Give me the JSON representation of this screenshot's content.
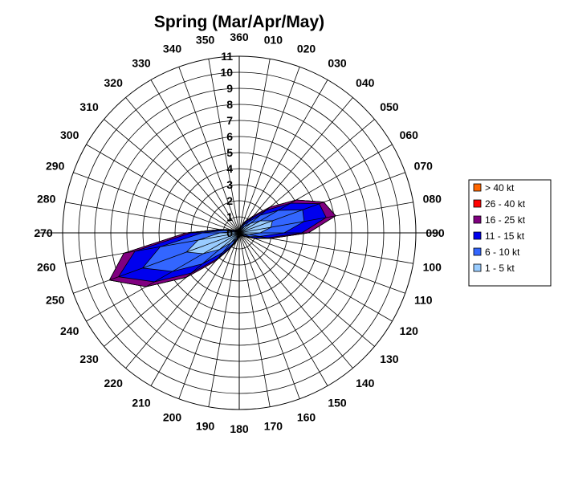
{
  "chart_data": {
    "type": "radar",
    "title": "Spring (Mar/Apr/May)",
    "directions": [
      "360",
      "010",
      "020",
      "030",
      "040",
      "050",
      "060",
      "070",
      "080",
      "090",
      "100",
      "110",
      "120",
      "130",
      "140",
      "150",
      "160",
      "170",
      "180",
      "190",
      "200",
      "210",
      "220",
      "230",
      "240",
      "250",
      "260",
      "270",
      "280",
      "290",
      "300",
      "310",
      "320",
      "330",
      "340",
      "350"
    ],
    "radial_ticks": [
      "0",
      "1",
      "2",
      "3",
      "4",
      "5",
      "6",
      "7",
      "8",
      "9",
      "10",
      "11"
    ],
    "rlim": [
      0,
      11
    ],
    "grid": true,
    "legend": {
      "position": "right",
      "entries": [
        {
          "label": "> 40 kt",
          "color": "#ff6600"
        },
        {
          "label": "26 - 40 kt",
          "color": "#ff0000"
        },
        {
          "label": "16 - 25 kt",
          "color": "#800080"
        },
        {
          "label": "11 - 15 kt",
          "color": "#0000ee"
        },
        {
          "label": "6 - 10 kt",
          "color": "#3366ff"
        },
        {
          "label": "1 - 5 kt",
          "color": "#99ccff"
        }
      ]
    },
    "series": [
      {
        "name": "> 40 kt",
        "color": "#ff6600",
        "values": [
          0.2,
          0.3,
          0.6,
          0.9,
          1.4,
          2.5,
          4.1,
          5.6,
          6.1,
          4.3,
          2.0,
          1.0,
          0.5,
          0.3,
          0.2,
          0.2,
          0.2,
          0.2,
          0.2,
          0.3,
          0.6,
          1.1,
          2.3,
          4.3,
          6.7,
          8.6,
          7.3,
          3.3,
          1.2,
          0.6,
          0.3,
          0.3,
          0.2,
          0.2,
          0.2,
          0.2
        ]
      },
      {
        "name": "26 - 40 kt",
        "color": "#ff0000",
        "values": [
          0.2,
          0.3,
          0.6,
          0.9,
          1.4,
          2.5,
          4.1,
          5.6,
          6.1,
          4.3,
          2.0,
          1.0,
          0.5,
          0.3,
          0.2,
          0.2,
          0.2,
          0.2,
          0.2,
          0.3,
          0.6,
          1.1,
          2.3,
          4.3,
          6.7,
          8.6,
          7.3,
          3.3,
          1.2,
          0.6,
          0.3,
          0.3,
          0.2,
          0.2,
          0.2,
          0.2
        ]
      },
      {
        "name": "16 - 25 kt",
        "color": "#800080",
        "values": [
          0.2,
          0.3,
          0.6,
          0.9,
          1.4,
          2.5,
          4.1,
          5.6,
          6.1,
          4.3,
          2.0,
          1.0,
          0.5,
          0.3,
          0.2,
          0.2,
          0.2,
          0.2,
          0.2,
          0.3,
          0.6,
          1.1,
          2.3,
          4.3,
          6.7,
          8.6,
          7.3,
          3.3,
          1.2,
          0.6,
          0.3,
          0.3,
          0.2,
          0.2,
          0.2,
          0.2
        ]
      },
      {
        "name": "11 - 15 kt",
        "color": "#0000ee",
        "values": [
          0.2,
          0.3,
          0.5,
          0.8,
          1.2,
          2.2,
          3.7,
          5.3,
          5.5,
          3.9,
          1.8,
          0.9,
          0.5,
          0.3,
          0.2,
          0.2,
          0.2,
          0.2,
          0.2,
          0.3,
          0.5,
          1.0,
          2.1,
          3.9,
          6.1,
          8.0,
          6.6,
          3.0,
          1.1,
          0.5,
          0.3,
          0.3,
          0.2,
          0.2,
          0.2,
          0.2
        ]
      },
      {
        "name": "6 - 10 kt",
        "color": "#3366ff",
        "values": [
          0.2,
          0.2,
          0.4,
          0.6,
          0.9,
          1.7,
          2.8,
          4.2,
          4.1,
          2.8,
          1.3,
          0.7,
          0.4,
          0.2,
          0.2,
          0.2,
          0.2,
          0.2,
          0.2,
          0.2,
          0.4,
          0.8,
          1.6,
          3.0,
          4.8,
          6.4,
          5.0,
          2.3,
          0.9,
          0.4,
          0.2,
          0.2,
          0.2,
          0.2,
          0.2,
          0.2
        ]
      },
      {
        "name": "1 - 5 kt",
        "color": "#99ccff",
        "values": [
          0.1,
          0.1,
          0.2,
          0.3,
          0.5,
          0.9,
          1.5,
          2.2,
          2.0,
          1.3,
          0.6,
          0.3,
          0.2,
          0.1,
          0.1,
          0.1,
          0.1,
          0.1,
          0.1,
          0.1,
          0.2,
          0.4,
          0.8,
          1.6,
          2.6,
          3.5,
          2.6,
          1.2,
          0.4,
          0.2,
          0.1,
          0.1,
          0.1,
          0.1,
          0.1,
          0.1
        ]
      }
    ]
  }
}
